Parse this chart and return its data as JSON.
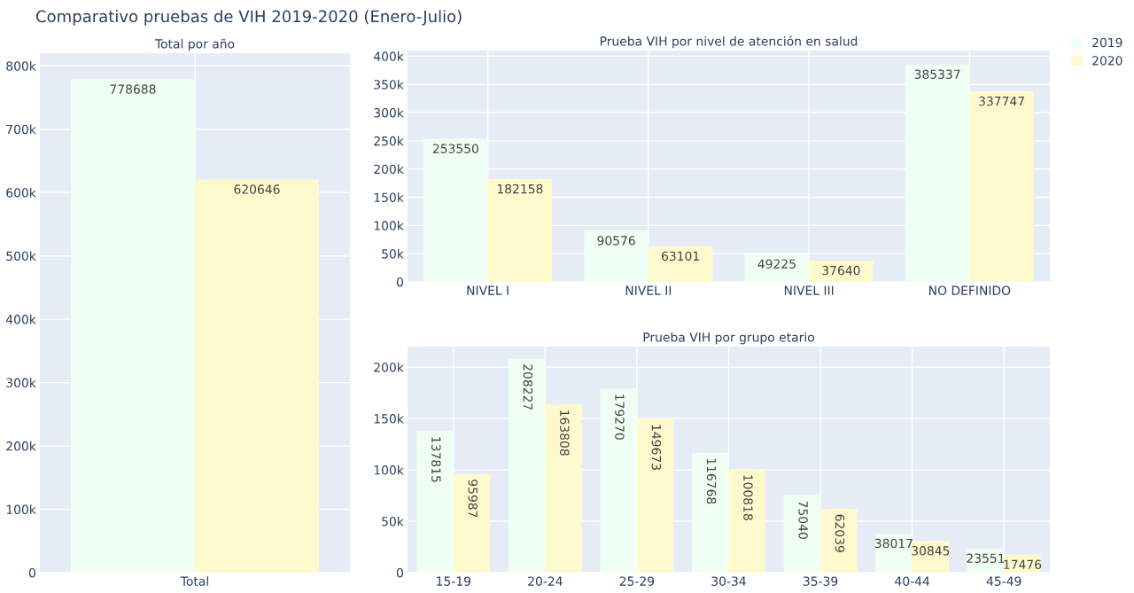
{
  "chart_data": [
    {
      "type": "bar",
      "title": "Comparativo pruebas de VIH 2019-2020 (Enero-Julio)",
      "subtitle": "Total por año",
      "categories": [
        "Total"
      ],
      "series": [
        {
          "name": "2019",
          "color": "#f0fff4",
          "values": [
            778688
          ]
        },
        {
          "name": "2020",
          "color": "#fffacd",
          "values": [
            620646
          ]
        }
      ],
      "ylim": [
        0,
        820000
      ],
      "yticks": [
        {
          "value": 0,
          "label": "0"
        },
        {
          "value": 100000,
          "label": "100k"
        },
        {
          "value": 200000,
          "label": "200k"
        },
        {
          "value": 300000,
          "label": "300k"
        },
        {
          "value": 400000,
          "label": "400k"
        },
        {
          "value": 500000,
          "label": "500k"
        },
        {
          "value": 600000,
          "label": "600k"
        },
        {
          "value": 700000,
          "label": "700k"
        },
        {
          "value": 800000,
          "label": "800k"
        }
      ],
      "grid": true,
      "data_labels": true,
      "legend": "top right"
    },
    {
      "type": "bar",
      "subtitle": "Prueba VIH por nivel de atención en salud",
      "categories": [
        "NIVEL I",
        "NIVEL II",
        "NIVEL III",
        "NO DEFINIDO"
      ],
      "series": [
        {
          "name": "2019",
          "color": "#f0fff4",
          "values": [
            253550,
            90576,
            49225,
            385337
          ]
        },
        {
          "name": "2020",
          "color": "#fffacd",
          "values": [
            182158,
            63101,
            37640,
            337747
          ]
        }
      ],
      "ylim": [
        0,
        410000
      ],
      "yticks": [
        {
          "value": 0,
          "label": "0"
        },
        {
          "value": 50000,
          "label": "50k"
        },
        {
          "value": 100000,
          "label": "100k"
        },
        {
          "value": 150000,
          "label": "150k"
        },
        {
          "value": 200000,
          "label": "200k"
        },
        {
          "value": 250000,
          "label": "250k"
        },
        {
          "value": 300000,
          "label": "300k"
        },
        {
          "value": 350000,
          "label": "350k"
        },
        {
          "value": 400000,
          "label": "400k"
        }
      ],
      "grid": true,
      "data_labels": true
    },
    {
      "type": "bar",
      "subtitle": "Prueba VIH por grupo etario",
      "categories": [
        "15-19",
        "20-24",
        "25-29",
        "30-34",
        "35-39",
        "40-44",
        "45-49"
      ],
      "series": [
        {
          "name": "2019",
          "color": "#f0fff4",
          "values": [
            137815,
            208227,
            179270,
            116768,
            75040,
            38017,
            23551
          ]
        },
        {
          "name": "2020",
          "color": "#fffacd",
          "values": [
            95987,
            163808,
            149673,
            100818,
            62039,
            30845,
            17476
          ]
        }
      ],
      "ylim": [
        0,
        220000
      ],
      "yticks": [
        {
          "value": 0,
          "label": "0"
        },
        {
          "value": 50000,
          "label": "50k"
        },
        {
          "value": 100000,
          "label": "100k"
        },
        {
          "value": 150000,
          "label": "150k"
        },
        {
          "value": 200000,
          "label": "200k"
        }
      ],
      "grid": true,
      "data_labels": true
    }
  ]
}
